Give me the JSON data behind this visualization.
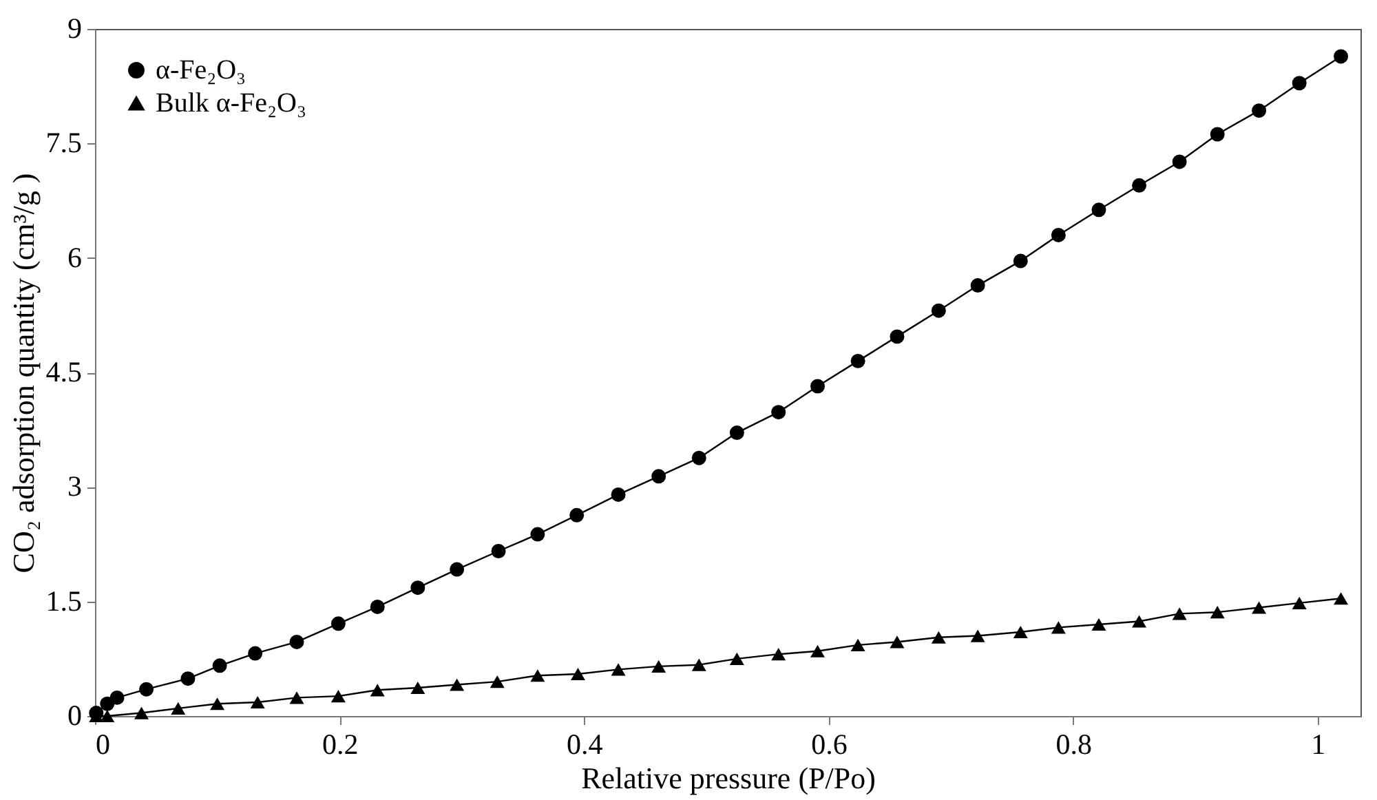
{
  "chart_data": {
    "type": "line",
    "xlabel": "Relative  pressure (P/Po)",
    "ylabel": "CO₂ adsorption quantity (cm³/g )",
    "xlim": [
      0,
      1.035
    ],
    "ylim": [
      0,
      9
    ],
    "xticks": [
      0,
      0.2,
      0.4,
      0.6,
      0.8,
      1
    ],
    "yticks": [
      0,
      1.5,
      3,
      4.5,
      6,
      7.5,
      9
    ],
    "grid": false,
    "legend": "top left",
    "line_style": "solid",
    "series": [
      {
        "name": "α-Fe₂O₃",
        "color": "#000000",
        "marker": "circle",
        "x": [
          0.001,
          0.01,
          0.018,
          0.042,
          0.076,
          0.102,
          0.131,
          0.165,
          0.199,
          0.231,
          0.264,
          0.296,
          0.33,
          0.362,
          0.394,
          0.428,
          0.461,
          0.494,
          0.525,
          0.559,
          0.591,
          0.624,
          0.656,
          0.69,
          0.722,
          0.757,
          0.788,
          0.821,
          0.854,
          0.887,
          0.918,
          0.952,
          0.985,
          1.019
        ],
        "values": [
          0.04,
          0.16,
          0.24,
          0.35,
          0.49,
          0.66,
          0.82,
          0.97,
          1.21,
          1.43,
          1.68,
          1.92,
          2.16,
          2.38,
          2.63,
          2.9,
          3.14,
          3.38,
          3.71,
          3.98,
          4.32,
          4.65,
          4.97,
          5.31,
          5.64,
          5.96,
          6.3,
          6.63,
          6.95,
          7.26,
          7.62,
          7.93,
          8.29,
          8.64
        ]
      },
      {
        "name": "Bulk α-Fe₂O₃",
        "color": "#000000",
        "marker": "triangle",
        "x": [
          0.001,
          0.01,
          0.038,
          0.068,
          0.1,
          0.133,
          0.165,
          0.199,
          0.231,
          0.264,
          0.296,
          0.329,
          0.362,
          0.395,
          0.428,
          0.461,
          0.494,
          0.525,
          0.559,
          0.591,
          0.624,
          0.656,
          0.69,
          0.722,
          0.757,
          0.788,
          0.821,
          0.854,
          0.887,
          0.918,
          0.952,
          0.985,
          1.019
        ],
        "values": [
          0.0,
          0.0,
          0.04,
          0.1,
          0.16,
          0.18,
          0.24,
          0.26,
          0.34,
          0.37,
          0.41,
          0.45,
          0.53,
          0.55,
          0.61,
          0.65,
          0.67,
          0.75,
          0.81,
          0.85,
          0.93,
          0.97,
          1.03,
          1.05,
          1.1,
          1.16,
          1.2,
          1.24,
          1.34,
          1.36,
          1.42,
          1.48,
          1.54
        ]
      }
    ]
  }
}
